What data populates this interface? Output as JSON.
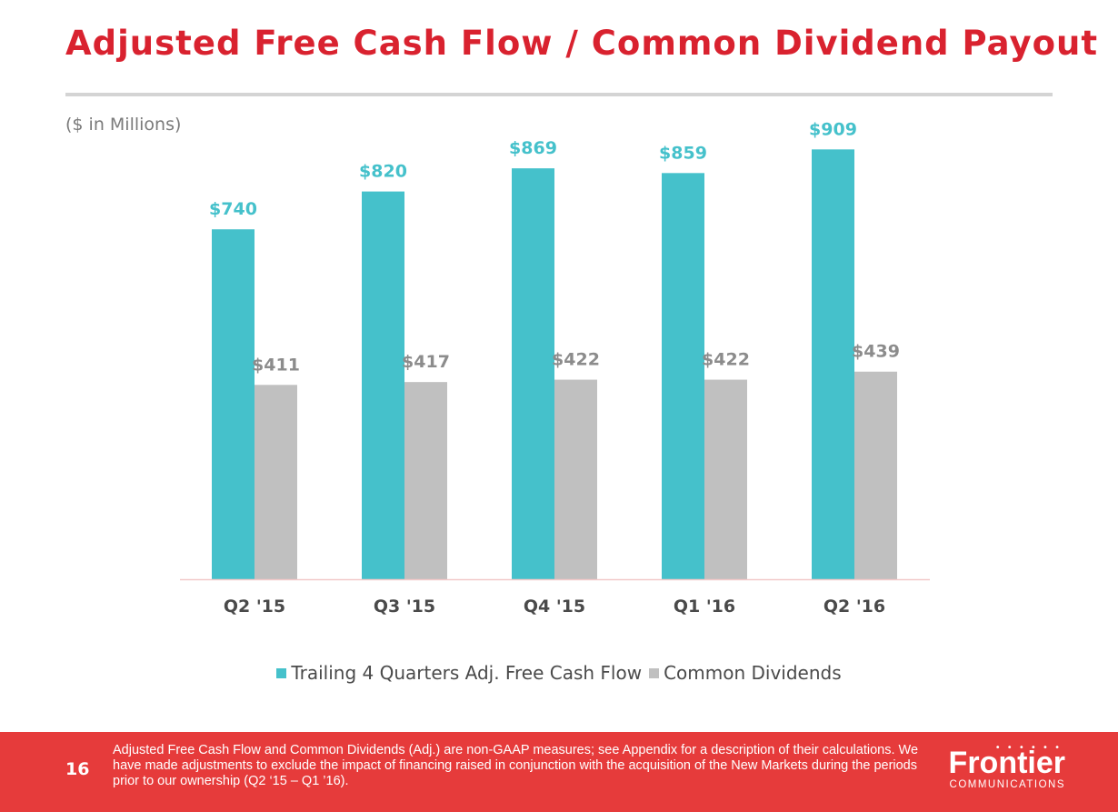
{
  "title": "Adjusted Free Cash Flow / Common Dividend Payout",
  "units_label": "($ in Millions)",
  "colors": {
    "series1": "#45c1cb",
    "series2": "#c0c0c0",
    "title": "#d9222f",
    "footer": "#e63b3b"
  },
  "chart_data": {
    "type": "bar",
    "categories": [
      "Q2 '15",
      "Q3 '15",
      "Q4 '15",
      "Q1 '16",
      "Q2 '16"
    ],
    "series": [
      {
        "name": "Trailing 4 Quarters Adj. Free Cash Flow",
        "values": [
          740,
          820,
          869,
          859,
          909
        ],
        "labels": [
          "$740",
          "$820",
          "$869",
          "$859",
          "$909"
        ]
      },
      {
        "name": "Common Dividends",
        "values": [
          411,
          417,
          422,
          422,
          439
        ],
        "labels": [
          "$411",
          "$417",
          "$422",
          "$422",
          "$439"
        ]
      }
    ],
    "ylim": [
      0,
      1000
    ],
    "grid": false,
    "legend": "bottom"
  },
  "footer": {
    "page_number": "16",
    "note": "Adjusted Free Cash Flow and Common Dividends (Adj.) are non-GAAP measures; see Appendix for a description of their calculations.  We have made adjustments to exclude the impact of financing raised in conjunction with the acquisition of the New Markets during the periods prior to our ownership (Q2 ‘15 – Q1 ’16).",
    "logo_name": "Frontier",
    "logo_sub": "COMMUNICATIONS"
  }
}
